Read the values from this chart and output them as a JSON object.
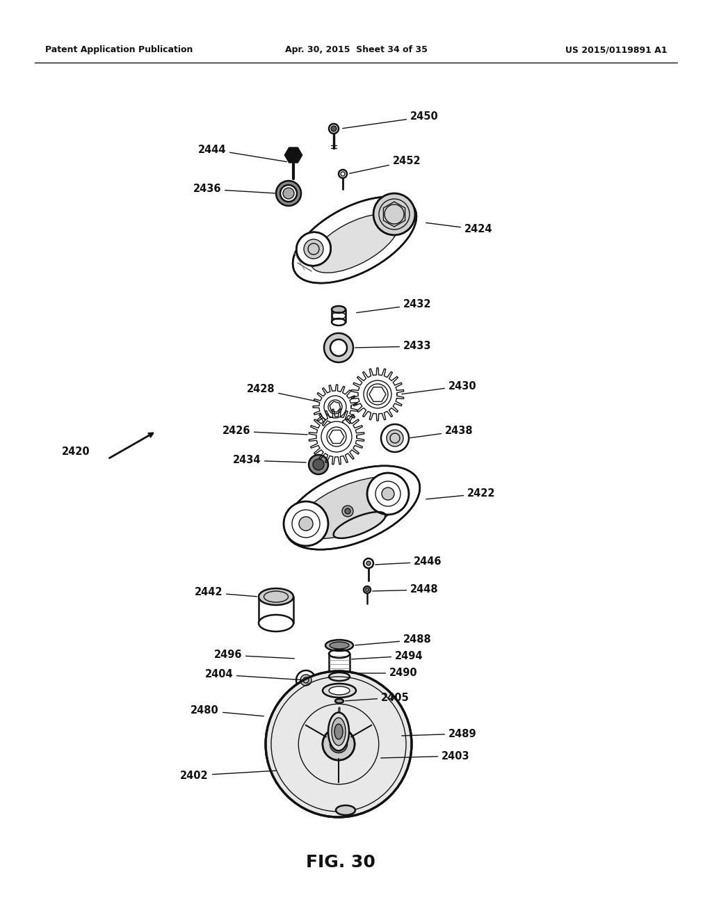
{
  "header_left": "Patent Application Publication",
  "header_center": "Apr. 30, 2015  Sheet 34 of 35",
  "header_right": "US 2015/0119891 A1",
  "background_color": "#ffffff",
  "fig_caption": "FIG. 30"
}
